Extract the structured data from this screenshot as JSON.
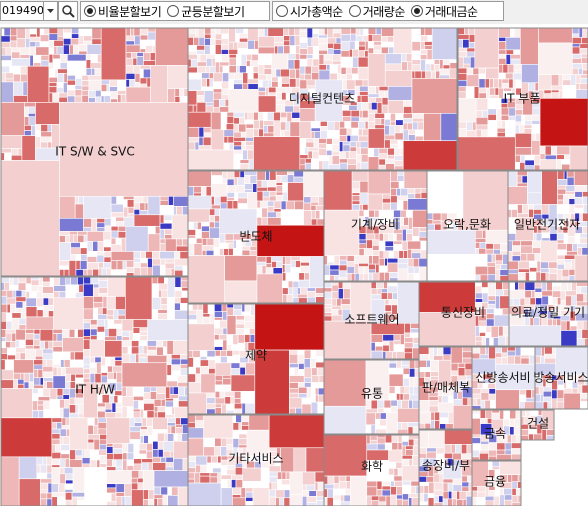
{
  "toolbar": {
    "code": "019490",
    "views": [
      {
        "label": "비율분할보기",
        "checked": true
      },
      {
        "label": "균등분할보기",
        "checked": false
      }
    ],
    "sorts": [
      {
        "label": "시가총액순",
        "checked": false
      },
      {
        "label": "거래량순",
        "checked": false
      },
      {
        "label": "거래대금순",
        "checked": true
      }
    ]
  },
  "sectors": [
    {
      "label": "IT S/W & SVC"
    },
    {
      "label": "IT H/W"
    },
    {
      "label": "디지털컨텐츠"
    },
    {
      "label": "IT 부품"
    },
    {
      "label": "반도체"
    },
    {
      "label": "기계/장비"
    },
    {
      "label": "오락,문화"
    },
    {
      "label": "일반전기전자"
    },
    {
      "label": "제약"
    },
    {
      "label": "기타서비스"
    },
    {
      "label": "소프트웨어"
    },
    {
      "label": "통신장비"
    },
    {
      "label": "의료/정밀 기기"
    },
    {
      "label": "유통"
    },
    {
      "label": "화학"
    },
    {
      "label": "판/매체복"
    },
    {
      "label": "신방송서비"
    },
    {
      "label": "방송서비스"
    },
    {
      "label": "송장비/부"
    },
    {
      "label": "금속"
    },
    {
      "label": "금융"
    },
    {
      "label": "건설"
    }
  ]
}
